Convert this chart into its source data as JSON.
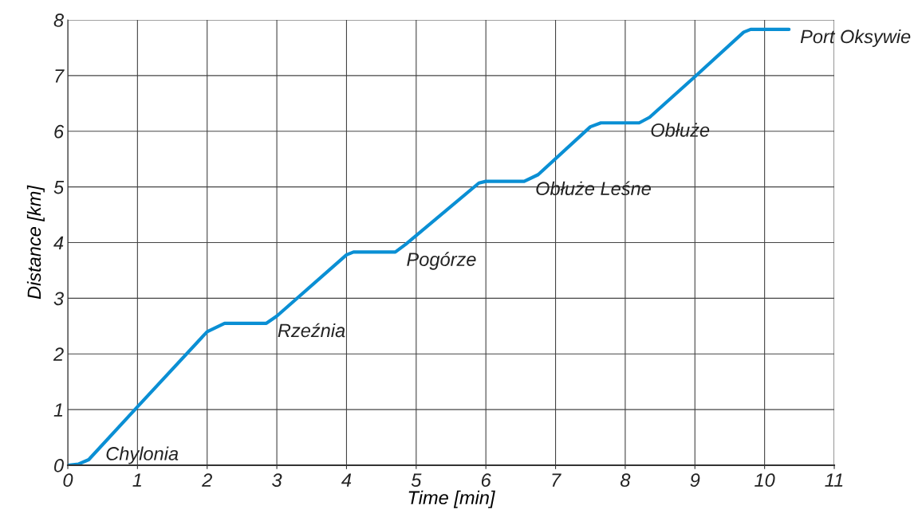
{
  "chart_data": {
    "type": "line",
    "xlabel": "Time [min]",
    "ylabel": "Distance [km]",
    "x": [
      0,
      0.15,
      0.3,
      1,
      2,
      2.25,
      2.85,
      3.0,
      4.0,
      4.1,
      4.7,
      4.85,
      5.9,
      6.0,
      6.55,
      6.75,
      7.5,
      7.65,
      8.2,
      8.35,
      9,
      9.7,
      9.8,
      10.35
    ],
    "series": [
      {
        "color": "#0a8fd4",
        "values": [
          0,
          0.02,
          0.1,
          1.05,
          2.4,
          2.55,
          2.55,
          2.68,
          3.78,
          3.83,
          3.83,
          3.97,
          5.07,
          5.1,
          5.1,
          5.22,
          6.08,
          6.15,
          6.15,
          6.25,
          6.98,
          7.78,
          7.83,
          7.83
        ]
      }
    ],
    "xlim": [
      0,
      11
    ],
    "xticks": [
      0,
      1,
      2,
      3,
      4,
      5,
      6,
      7,
      8,
      9,
      10,
      11
    ],
    "ylim": [
      0,
      8
    ],
    "yticks": [
      0,
      1,
      2,
      3,
      4,
      5,
      6,
      7,
      8
    ],
    "grid": true,
    "legend": false,
    "marker": "none",
    "line_style": "solid",
    "annotations": [
      {
        "text": "Chylonia",
        "x": 0,
        "y": 0
      },
      {
        "text": "Rzeźnia",
        "x": 2.85,
        "y": 2.55
      },
      {
        "text": "Pogórze",
        "x": 4.7,
        "y": 3.83
      },
      {
        "text": "Obłuże Leśne",
        "x": 6.55,
        "y": 5.1
      },
      {
        "text": "Obłuże",
        "x": 8.2,
        "y": 6.15
      },
      {
        "text": "Port Oksywie",
        "x": 10.35,
        "y": 7.83
      }
    ]
  }
}
